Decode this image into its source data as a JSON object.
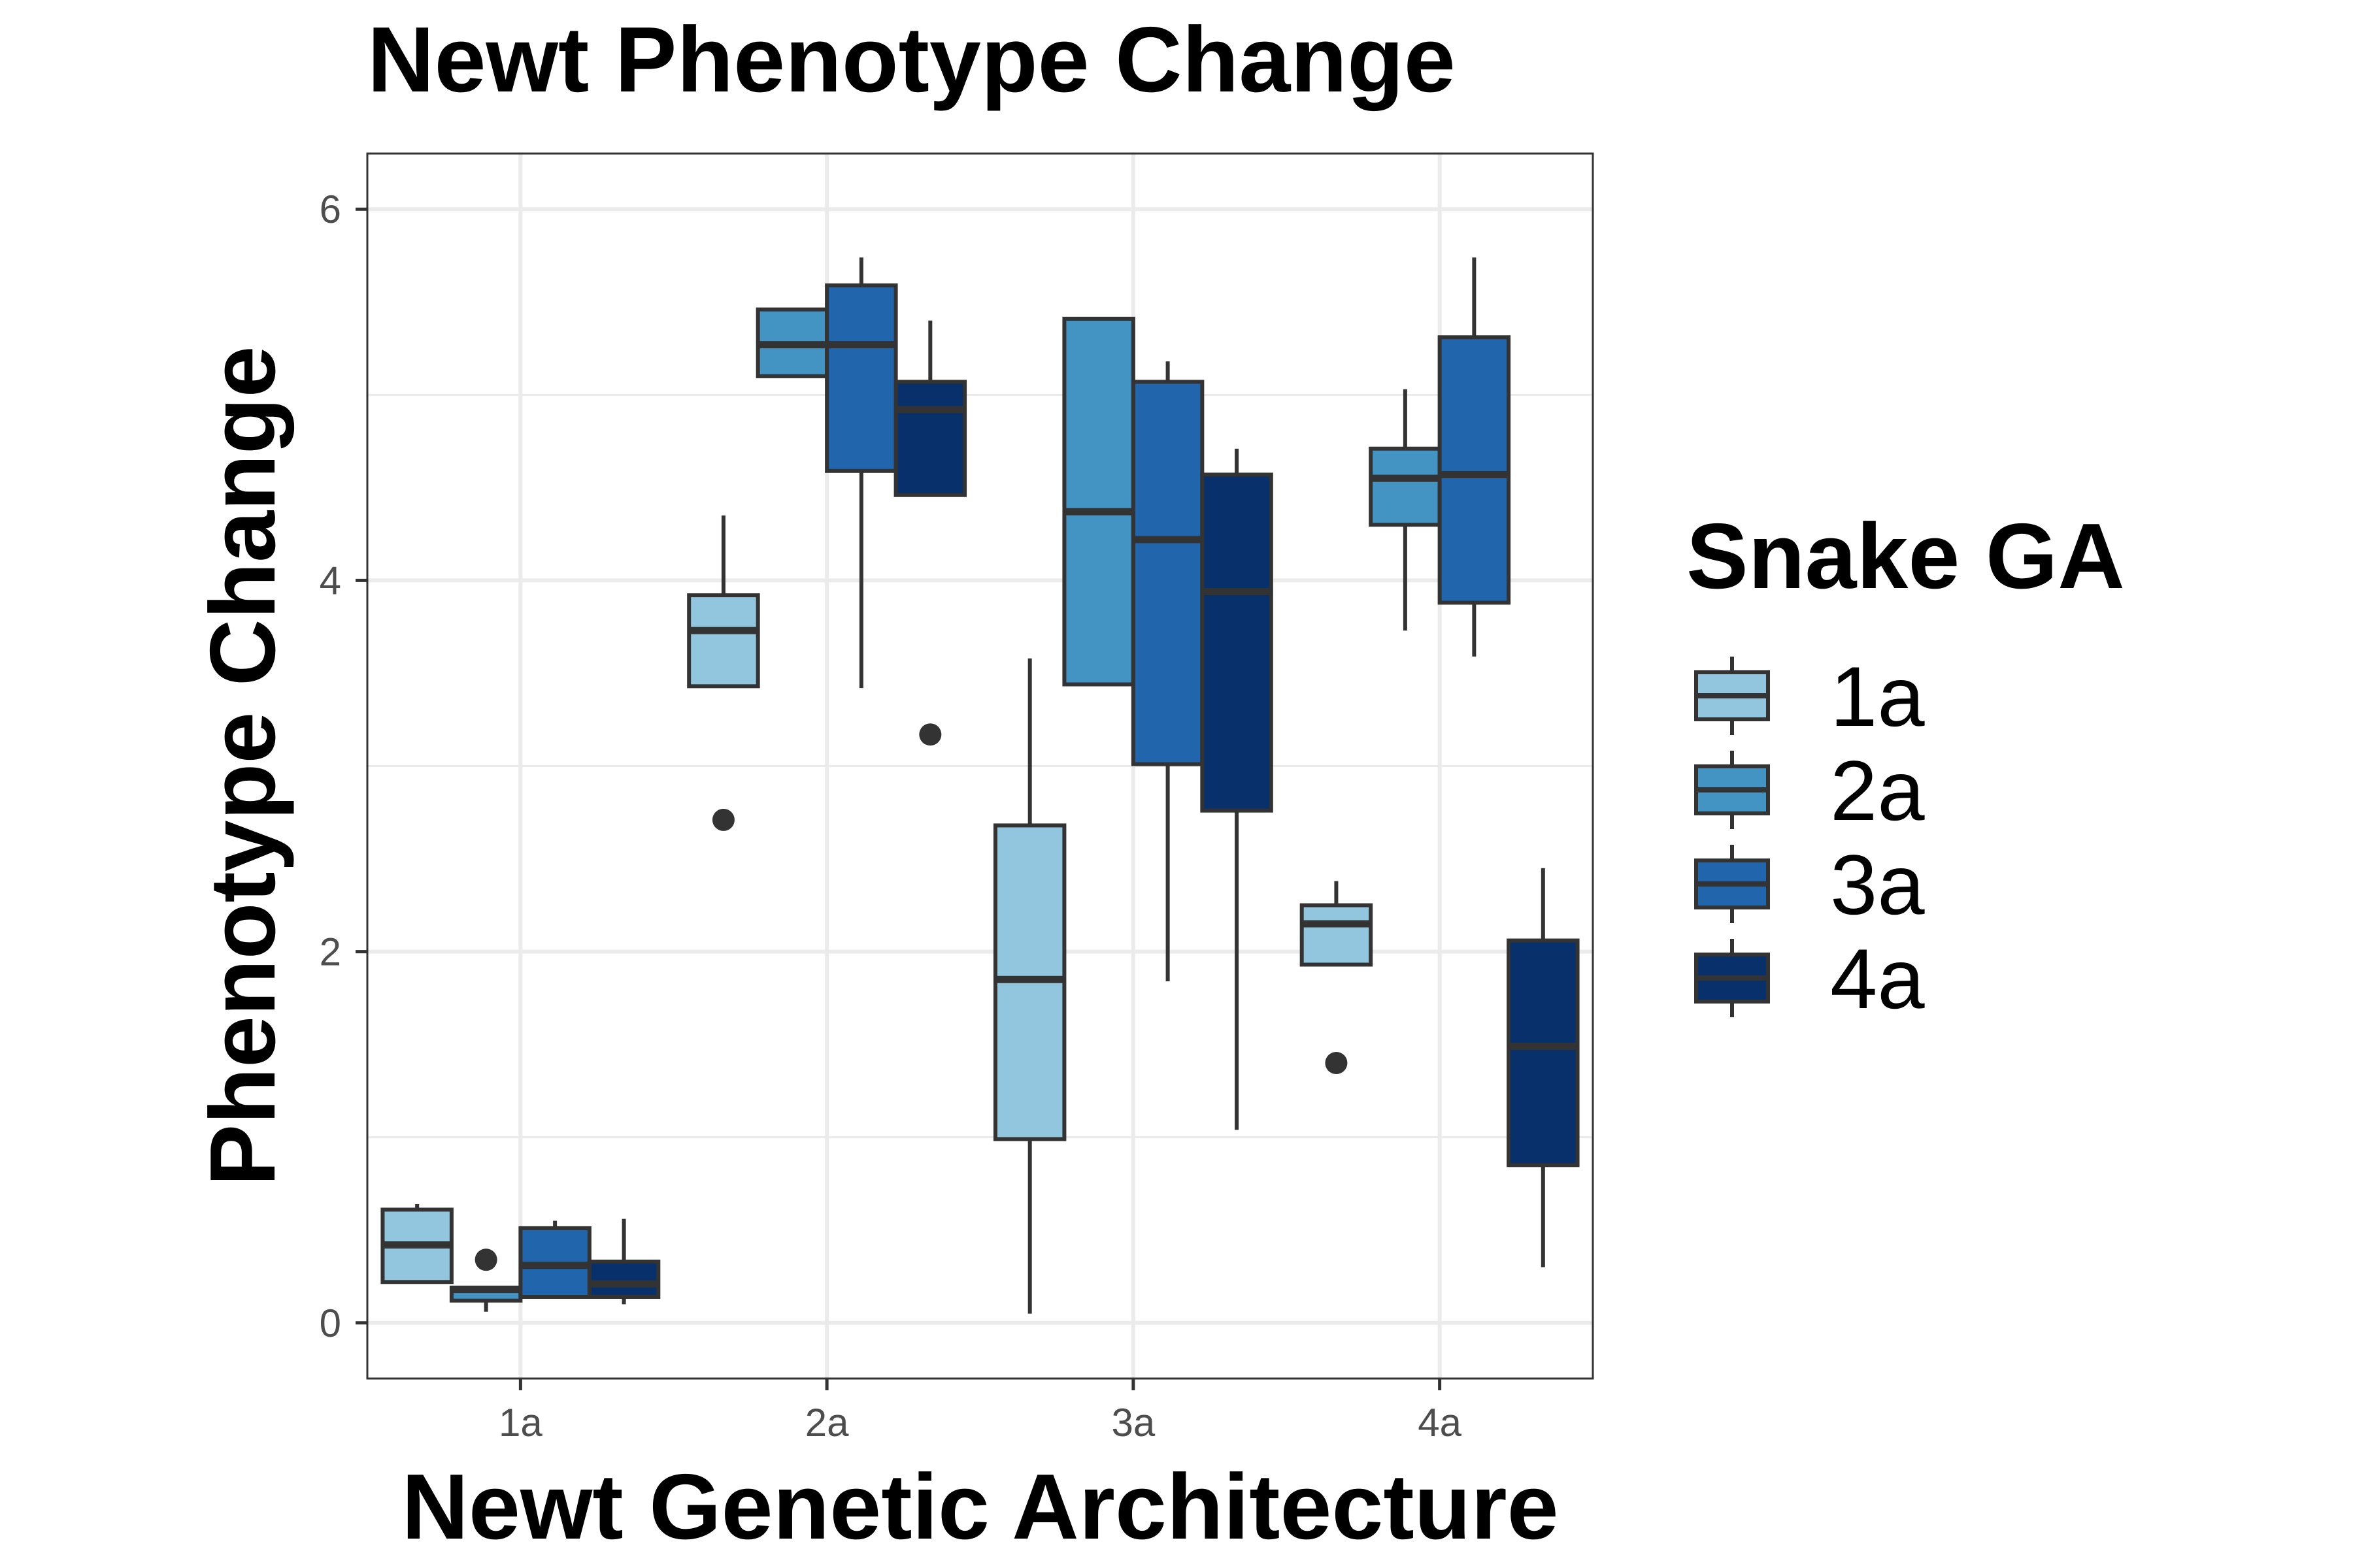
{
  "chart_data": {
    "type": "boxplot",
    "title": "Newt Phenotype Change",
    "xlabel": "Newt Genetic Architecture",
    "ylabel": "Phenotype Change",
    "categories": [
      "1a",
      "2a",
      "3a",
      "4a"
    ],
    "y_ticks": [
      0,
      2,
      4,
      6
    ],
    "ylim": [
      -0.3,
      6.3
    ],
    "grid": true,
    "legend": {
      "title": "Snake GA",
      "position": "right",
      "entries": [
        "1a",
        "2a",
        "3a",
        "4a"
      ]
    },
    "series": [
      {
        "name": "1a",
        "color": "#92c5de",
        "boxes": [
          {
            "category": "1a",
            "lower_whisker": 0.22,
            "q1": 0.22,
            "median": 0.42,
            "q3": 0.61,
            "upper_whisker": 0.64,
            "outliers": []
          },
          {
            "category": "2a",
            "lower_whisker": 3.43,
            "q1": 3.43,
            "median": 3.73,
            "q3": 3.92,
            "upper_whisker": 4.35,
            "outliers": [
              2.71
            ]
          },
          {
            "category": "3a",
            "lower_whisker": 0.05,
            "q1": 0.99,
            "median": 1.85,
            "q3": 2.68,
            "upper_whisker": 3.58,
            "outliers": []
          },
          {
            "category": "4a",
            "lower_whisker": 1.93,
            "q1": 1.93,
            "median": 2.15,
            "q3": 2.25,
            "upper_whisker": 2.38,
            "outliers": [
              1.4
            ]
          }
        ]
      },
      {
        "name": "2a",
        "color": "#4393c3",
        "boxes": [
          {
            "category": "1a",
            "lower_whisker": 0.06,
            "q1": 0.12,
            "median": 0.18,
            "q3": 0.19,
            "upper_whisker": 0.19,
            "outliers": [
              0.34
            ]
          },
          {
            "category": "2a",
            "lower_whisker": 5.1,
            "q1": 5.1,
            "median": 5.27,
            "q3": 5.46,
            "upper_whisker": 5.46,
            "outliers": []
          },
          {
            "category": "3a",
            "lower_whisker": 3.44,
            "q1": 3.44,
            "median": 4.37,
            "q3": 5.41,
            "upper_whisker": 5.41,
            "outliers": []
          },
          {
            "category": "4a",
            "lower_whisker": 3.73,
            "q1": 4.3,
            "median": 4.55,
            "q3": 4.71,
            "upper_whisker": 5.03,
            "outliers": []
          }
        ]
      },
      {
        "name": "3a",
        "color": "#2166ac",
        "boxes": [
          {
            "category": "1a",
            "lower_whisker": 0.14,
            "q1": 0.14,
            "median": 0.31,
            "q3": 0.51,
            "upper_whisker": 0.55,
            "outliers": []
          },
          {
            "category": "2a",
            "lower_whisker": 3.42,
            "q1": 4.59,
            "median": 5.27,
            "q3": 5.59,
            "upper_whisker": 5.74,
            "outliers": []
          },
          {
            "category": "3a",
            "lower_whisker": 1.84,
            "q1": 3.01,
            "median": 4.22,
            "q3": 5.07,
            "upper_whisker": 5.18,
            "outliers": []
          },
          {
            "category": "4a",
            "lower_whisker": 3.59,
            "q1": 3.88,
            "median": 4.57,
            "q3": 5.31,
            "upper_whisker": 5.74,
            "outliers": []
          }
        ]
      },
      {
        "name": "4a",
        "color": "#08306b",
        "boxes": [
          {
            "category": "1a",
            "lower_whisker": 0.1,
            "q1": 0.14,
            "median": 0.21,
            "q3": 0.33,
            "upper_whisker": 0.56,
            "outliers": []
          },
          {
            "category": "2a",
            "lower_whisker": 4.46,
            "q1": 4.46,
            "median": 4.92,
            "q3": 5.07,
            "upper_whisker": 5.4,
            "outliers": [
              3.17
            ]
          },
          {
            "category": "3a",
            "lower_whisker": 1.04,
            "q1": 2.76,
            "median": 3.94,
            "q3": 4.57,
            "upper_whisker": 4.71,
            "outliers": []
          },
          {
            "category": "4a",
            "lower_whisker": 0.3,
            "q1": 0.85,
            "median": 1.49,
            "q3": 2.06,
            "upper_whisker": 2.45,
            "outliers": []
          }
        ]
      }
    ]
  }
}
